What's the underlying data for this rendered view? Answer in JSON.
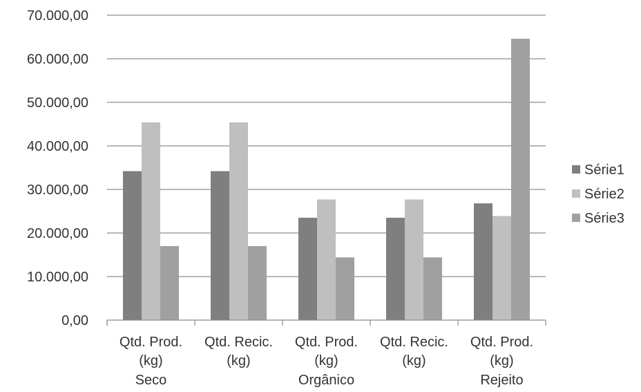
{
  "chart_data": {
    "type": "bar",
    "categories": [
      [
        "Qtd. Prod.",
        "(kg)"
      ],
      [
        "Qtd. Recic.",
        "(kg)"
      ],
      [
        "Qtd. Prod.",
        "(kg)"
      ],
      [
        "Qtd. Recic.",
        "(kg)"
      ],
      [
        "Qtd. Prod.",
        "(kg)"
      ]
    ],
    "groups": [
      "Seco",
      "Orgânico",
      "Rejeito"
    ],
    "series": [
      {
        "name": "Série1",
        "color": "#7f7f7f",
        "values": [
          34200,
          34200,
          23500,
          23500,
          26800
        ]
      },
      {
        "name": "Série2",
        "color": "#bfbfbf",
        "values": [
          45400,
          45400,
          27700,
          27700,
          23900
        ]
      },
      {
        "name": "Série3",
        "color": "#a0a0a0",
        "values": [
          17000,
          17000,
          14400,
          14400,
          64600
        ]
      }
    ],
    "ylim": [
      0,
      70000
    ],
    "yticks": [
      "0,00",
      "10.000,00",
      "20.000,00",
      "30.000,00",
      "40.000,00",
      "50.000,00",
      "60.000,00",
      "70.000,00"
    ],
    "grid": true,
    "legend": "right"
  }
}
